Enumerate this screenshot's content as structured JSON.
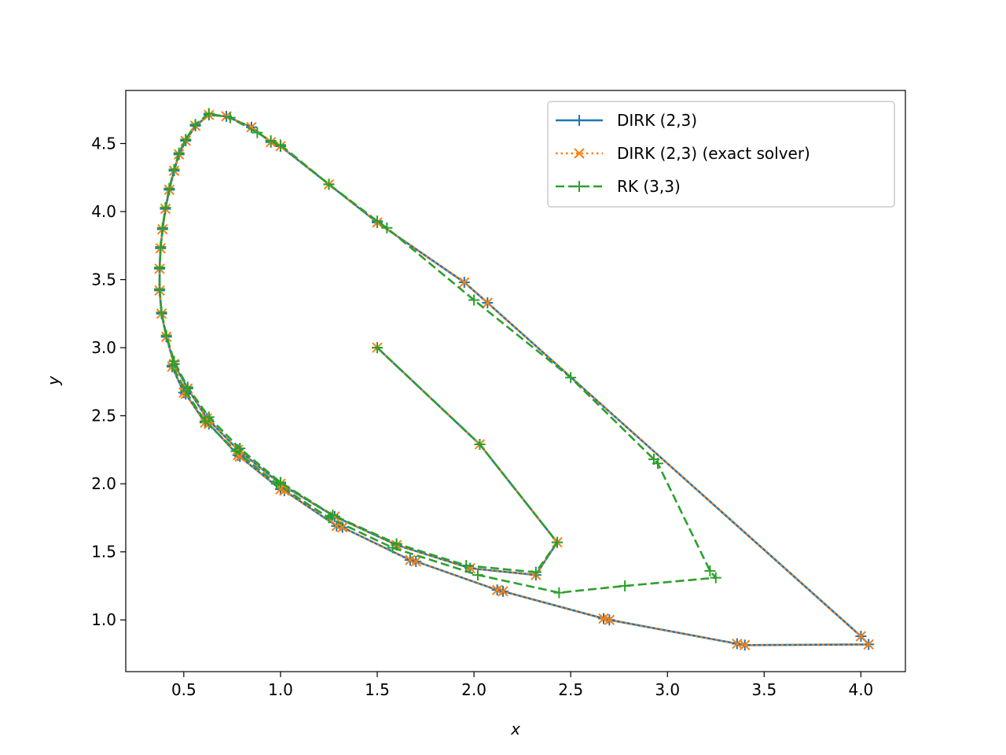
{
  "chart_data": {
    "type": "line",
    "title": "",
    "xlabel": "x",
    "ylabel": "y",
    "xlim": [
      0.2,
      4.23
    ],
    "ylim": [
      0.62,
      4.89
    ],
    "x_ticks": [
      "0.5",
      "1.0",
      "1.5",
      "2.0",
      "2.5",
      "3.0",
      "3.5",
      "4.0"
    ],
    "y_ticks": [
      "1.0",
      "1.5",
      "2.0",
      "2.5",
      "3.0",
      "3.5",
      "4.0",
      "4.5"
    ],
    "legend_position": "top-right",
    "series": [
      {
        "name": "DIRK (2,3)",
        "color": "#1f77b4",
        "line_style": "solid",
        "marker": "plus",
        "points": [
          [
            1.5,
            3.0
          ],
          [
            2.03,
            2.29
          ],
          [
            2.43,
            1.57
          ],
          [
            2.32,
            1.33
          ],
          [
            1.98,
            1.38
          ],
          [
            1.6,
            1.55
          ],
          [
            1.28,
            1.76
          ],
          [
            1.0,
            2.0
          ],
          [
            0.78,
            2.25
          ],
          [
            0.62,
            2.48
          ],
          [
            0.52,
            2.7
          ],
          [
            0.45,
            2.88
          ],
          [
            0.41,
            3.08
          ],
          [
            0.385,
            3.25
          ],
          [
            0.375,
            3.42
          ],
          [
            0.375,
            3.58
          ],
          [
            0.38,
            3.73
          ],
          [
            0.39,
            3.87
          ],
          [
            0.405,
            4.02
          ],
          [
            0.425,
            4.16
          ],
          [
            0.45,
            4.3
          ],
          [
            0.475,
            4.42
          ],
          [
            0.51,
            4.52
          ],
          [
            0.56,
            4.63
          ],
          [
            0.63,
            4.71
          ],
          [
            0.72,
            4.7
          ],
          [
            0.85,
            4.62
          ],
          [
            0.95,
            4.51
          ],
          [
            1.0,
            4.48
          ],
          [
            1.25,
            4.2
          ],
          [
            1.5,
            3.92
          ],
          [
            1.95,
            3.48
          ],
          [
            2.07,
            3.33
          ],
          [
            4.0,
            0.88
          ],
          [
            4.04,
            0.82
          ],
          [
            3.4,
            0.815
          ],
          [
            3.36,
            0.825
          ],
          [
            2.7,
            1.0
          ],
          [
            2.67,
            1.01
          ],
          [
            2.15,
            1.21
          ],
          [
            2.12,
            1.22
          ],
          [
            1.7,
            1.43
          ],
          [
            1.67,
            1.44
          ],
          [
            1.32,
            1.68
          ],
          [
            1.29,
            1.69
          ],
          [
            1.02,
            1.95
          ],
          [
            1.0,
            1.96
          ],
          [
            0.79,
            2.2
          ],
          [
            0.78,
            2.21
          ],
          [
            0.63,
            2.44
          ],
          [
            0.61,
            2.45
          ],
          [
            0.51,
            2.66
          ],
          [
            0.5,
            2.67
          ],
          [
            0.44,
            2.86
          ]
        ]
      },
      {
        "name": "DIRK (2,3) (exact solver)",
        "color": "#ff7f0e",
        "line_style": "dotted",
        "marker": "x",
        "points": [
          [
            1.5,
            3.0
          ],
          [
            2.03,
            2.29
          ],
          [
            2.43,
            1.57
          ],
          [
            2.32,
            1.33
          ],
          [
            1.98,
            1.38
          ],
          [
            1.6,
            1.55
          ],
          [
            1.28,
            1.76
          ],
          [
            1.0,
            2.0
          ],
          [
            0.78,
            2.25
          ],
          [
            0.62,
            2.48
          ],
          [
            0.52,
            2.7
          ],
          [
            0.45,
            2.88
          ],
          [
            0.41,
            3.08
          ],
          [
            0.385,
            3.25
          ],
          [
            0.375,
            3.42
          ],
          [
            0.375,
            3.58
          ],
          [
            0.38,
            3.73
          ],
          [
            0.39,
            3.87
          ],
          [
            0.405,
            4.02
          ],
          [
            0.425,
            4.16
          ],
          [
            0.45,
            4.3
          ],
          [
            0.475,
            4.42
          ],
          [
            0.51,
            4.52
          ],
          [
            0.56,
            4.63
          ],
          [
            0.63,
            4.71
          ],
          [
            0.72,
            4.7
          ],
          [
            0.85,
            4.62
          ],
          [
            0.95,
            4.51
          ],
          [
            1.0,
            4.48
          ],
          [
            1.25,
            4.2
          ],
          [
            1.5,
            3.92
          ],
          [
            1.95,
            3.48
          ],
          [
            2.07,
            3.33
          ],
          [
            4.0,
            0.88
          ],
          [
            4.04,
            0.82
          ],
          [
            3.4,
            0.815
          ],
          [
            3.36,
            0.825
          ],
          [
            2.7,
            1.0
          ],
          [
            2.67,
            1.01
          ],
          [
            2.15,
            1.21
          ],
          [
            2.12,
            1.22
          ],
          [
            1.7,
            1.43
          ],
          [
            1.67,
            1.44
          ],
          [
            1.32,
            1.68
          ],
          [
            1.29,
            1.69
          ],
          [
            1.02,
            1.95
          ],
          [
            1.0,
            1.96
          ],
          [
            0.79,
            2.2
          ],
          [
            0.78,
            2.21
          ],
          [
            0.63,
            2.44
          ],
          [
            0.61,
            2.45
          ],
          [
            0.51,
            2.66
          ],
          [
            0.5,
            2.67
          ],
          [
            0.44,
            2.86
          ]
        ]
      },
      {
        "name": "RK (3,3)",
        "color": "#2ca02c",
        "line_style": "dashed",
        "marker": "plus",
        "points": [
          [
            1.5,
            3.0
          ],
          [
            2.03,
            2.29
          ],
          [
            2.43,
            1.57
          ],
          [
            2.32,
            1.35
          ],
          [
            1.96,
            1.4
          ],
          [
            1.6,
            1.56
          ],
          [
            1.27,
            1.77
          ],
          [
            1.0,
            2.01
          ],
          [
            0.79,
            2.26
          ],
          [
            0.63,
            2.49
          ],
          [
            0.52,
            2.71
          ],
          [
            0.45,
            2.9
          ],
          [
            0.41,
            3.09
          ],
          [
            0.385,
            3.26
          ],
          [
            0.375,
            3.43
          ],
          [
            0.375,
            3.59
          ],
          [
            0.38,
            3.74
          ],
          [
            0.39,
            3.88
          ],
          [
            0.405,
            4.03
          ],
          [
            0.425,
            4.17
          ],
          [
            0.45,
            4.31
          ],
          [
            0.475,
            4.43
          ],
          [
            0.51,
            4.53
          ],
          [
            0.56,
            4.64
          ],
          [
            0.63,
            4.72
          ],
          [
            0.74,
            4.69
          ],
          [
            0.88,
            4.58
          ],
          [
            0.95,
            4.52
          ],
          [
            1.0,
            4.49
          ],
          [
            1.25,
            4.2
          ],
          [
            1.5,
            3.93
          ],
          [
            1.55,
            3.88
          ],
          [
            2.0,
            3.35
          ],
          [
            2.5,
            2.78
          ],
          [
            2.93,
            2.18
          ],
          [
            2.95,
            2.15
          ],
          [
            3.22,
            1.36
          ],
          [
            3.25,
            1.31
          ],
          [
            2.78,
            1.25
          ],
          [
            2.44,
            1.2
          ],
          [
            2.02,
            1.33
          ],
          [
            1.58,
            1.53
          ],
          [
            1.25,
            1.75
          ],
          [
            0.98,
            2.0
          ],
          [
            0.77,
            2.24
          ],
          [
            0.61,
            2.46
          ],
          [
            0.51,
            2.68
          ],
          [
            0.44,
            2.87
          ]
        ]
      }
    ]
  }
}
